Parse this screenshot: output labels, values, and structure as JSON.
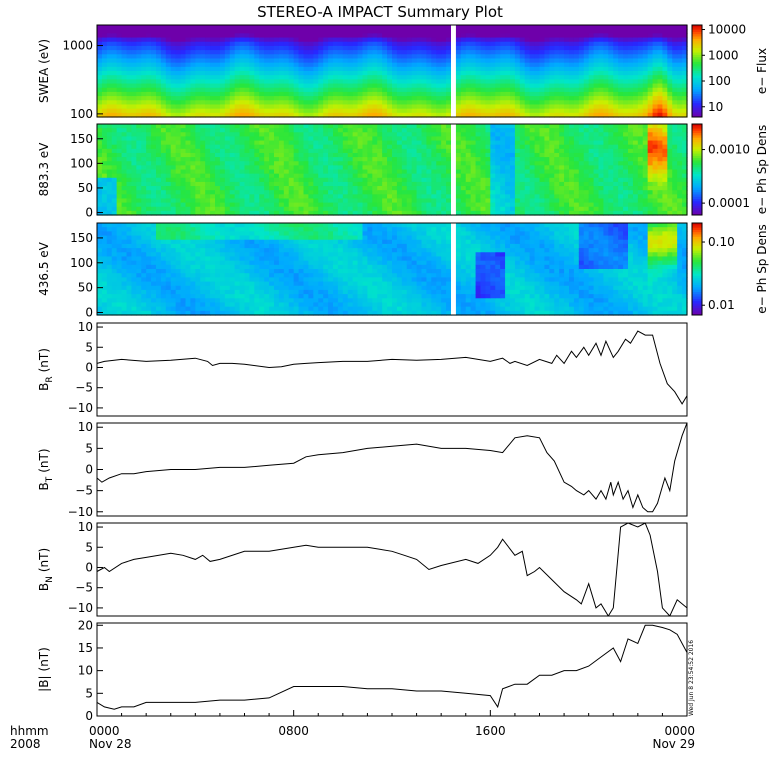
{
  "chart_data": {
    "title": "STEREO-A IMPACT Summary Plot",
    "type": "multi-panel time series",
    "time_ticks": [
      "0000",
      "0800",
      "1600",
      "0000"
    ],
    "time_ticks_hours": [
      0,
      8,
      16,
      24
    ],
    "time_date_labels": [
      "Nov 28",
      "Nov 29"
    ],
    "time_unit_label": "hhmm",
    "year_label": "2008",
    "x_range_hours": [
      0,
      24
    ],
    "data_gap_hours": [
      14.4,
      14.6
    ],
    "timestamp": "Wed Jun  8 23:54:52 2016",
    "spectrograms": [
      {
        "name": "swea",
        "ylabel": "SWEA (eV)",
        "y_scale": "log",
        "y_ticks": [
          100,
          1000
        ],
        "y_tick_labels": [
          "100",
          "1000"
        ],
        "y_range": [
          90,
          2000
        ],
        "colorbar_label": "e− Flux",
        "colorbar_scale": "log",
        "colorbar_ticks": [
          10,
          100,
          1000,
          10000
        ],
        "colorbar_tick_labels": [
          "10",
          "100",
          "1000",
          "10000"
        ],
        "colorbar_range": [
          4,
          15000
        ]
      },
      {
        "name": "pad883",
        "ylabel": "883.3 eV",
        "y_scale": "linear",
        "y_ticks": [
          0,
          50,
          100,
          150
        ],
        "y_tick_labels": [
          "0",
          "50",
          "100",
          "150"
        ],
        "y_range": [
          -5,
          180
        ],
        "colorbar_label": "e− Ph Sp Dens",
        "colorbar_scale": "log",
        "colorbar_ticks": [
          0.0001,
          0.001
        ],
        "colorbar_tick_labels": [
          "0.0001",
          "0.0010"
        ],
        "colorbar_range": [
          6e-05,
          0.003
        ]
      },
      {
        "name": "pad436",
        "ylabel": "436.5 eV",
        "y_scale": "linear",
        "y_ticks": [
          0,
          50,
          100,
          150
        ],
        "y_tick_labels": [
          "0",
          "50",
          "100",
          "150"
        ],
        "y_range": [
          -5,
          180
        ],
        "colorbar_label": "e− Ph Sp Dens",
        "colorbar_scale": "log",
        "colorbar_ticks": [
          0.01,
          0.1
        ],
        "colorbar_tick_labels": [
          "0.01",
          "0.10"
        ],
        "colorbar_range": [
          0.007,
          0.2
        ]
      }
    ],
    "line_panels": [
      {
        "name": "br",
        "ylabel_main": "B",
        "ylabel_sub": "R",
        "ylabel_unit": "(nT)",
        "y_ticks": [
          -10,
          -5,
          0,
          5,
          10
        ],
        "y_tick_labels": [
          "−10",
          "−5",
          "0",
          "5",
          "10"
        ],
        "y_range": [
          -12,
          11
        ],
        "x": [
          0,
          0.3,
          0.7,
          1,
          2,
          3,
          4,
          4.5,
          4.7,
          5,
          5.5,
          6,
          7,
          7.5,
          8,
          8.5,
          9,
          10,
          11,
          12,
          13,
          14,
          15,
          16,
          16.5,
          16.8,
          17,
          17.5,
          18,
          18.5,
          18.7,
          19,
          19.3,
          19.5,
          19.8,
          20,
          20.3,
          20.5,
          20.7,
          21,
          21.2,
          21.5,
          21.7,
          22,
          22.3,
          22.6,
          22.9,
          23.2,
          23.5,
          23.8,
          24
        ],
        "y": [
          1,
          1.5,
          1.8,
          2,
          1.5,
          1.8,
          2.3,
          1.5,
          0.5,
          1,
          1,
          0.8,
          0,
          0.2,
          0.8,
          1,
          1.2,
          1.5,
          1.5,
          2,
          1.8,
          2,
          2.5,
          1.5,
          2.3,
          1,
          1.5,
          0.5,
          2,
          1,
          3,
          1,
          4,
          2.5,
          5,
          3,
          6,
          3,
          6.5,
          2.5,
          4,
          7,
          6,
          9,
          8,
          8,
          1,
          -4,
          -6,
          -9,
          -7
        ]
      },
      {
        "name": "bt",
        "ylabel_main": "B",
        "ylabel_sub": "T",
        "ylabel_unit": "(nT)",
        "y_ticks": [
          -10,
          -5,
          0,
          5,
          10
        ],
        "y_tick_labels": [
          "−10",
          "−5",
          "0",
          "5",
          "10"
        ],
        "y_range": [
          -11,
          11
        ],
        "x": [
          0,
          0.2,
          0.5,
          1,
          1.5,
          2,
          3,
          4,
          5,
          6,
          7,
          8,
          8.5,
          9,
          10,
          11,
          12,
          13,
          14,
          15,
          16,
          16.5,
          17,
          17.5,
          18,
          18.3,
          18.6,
          19,
          19.3,
          19.5,
          19.8,
          20,
          20.3,
          20.5,
          20.7,
          20.9,
          21,
          21.2,
          21.4,
          21.6,
          21.8,
          22,
          22.2,
          22.4,
          22.6,
          22.8,
          23,
          23.1,
          23.3,
          23.5,
          23.8,
          24
        ],
        "y": [
          -2,
          -3,
          -2,
          -1,
          -1,
          -0.5,
          0,
          0,
          0.5,
          0.5,
          1,
          1.5,
          3,
          3.5,
          4,
          5,
          5.5,
          6,
          5,
          5,
          4.5,
          4,
          7.5,
          8,
          7.5,
          4,
          2,
          -3,
          -4,
          -5,
          -6,
          -5,
          -7,
          -5,
          -7,
          -3,
          -6,
          -3,
          -7,
          -5,
          -9,
          -6,
          -9,
          -10,
          -10,
          -8,
          -4,
          -2,
          -5,
          2,
          8,
          11
        ]
      },
      {
        "name": "bn",
        "ylabel_main": "B",
        "ylabel_sub": "N",
        "ylabel_unit": "(nT)",
        "y_ticks": [
          -10,
          -5,
          0,
          5,
          10
        ],
        "y_tick_labels": [
          "−10",
          "−5",
          "0",
          "5",
          "10"
        ],
        "y_range": [
          -12,
          11
        ],
        "x": [
          0,
          0.3,
          0.5,
          1,
          1.5,
          2,
          3,
          3.5,
          4,
          4.3,
          4.6,
          5,
          6,
          7,
          8,
          8.5,
          9,
          10,
          11,
          12,
          12.5,
          13,
          13.5,
          14,
          15,
          15.5,
          16,
          16.3,
          16.5,
          17,
          17.3,
          17.5,
          17.8,
          18,
          18.5,
          19,
          19.5,
          19.7,
          20,
          20.3,
          20.5,
          20.8,
          21,
          21.3,
          21.6,
          22,
          22.3,
          22.5,
          22.8,
          23,
          23.3,
          23.6,
          24
        ],
        "y": [
          -1,
          0,
          -1,
          1,
          2,
          2.5,
          3.5,
          3,
          2,
          3,
          1.5,
          2,
          4,
          4,
          5,
          5.5,
          5,
          5,
          5,
          4,
          3,
          2,
          -0.5,
          0.5,
          2,
          1,
          3,
          5,
          7,
          3,
          4,
          -2,
          -1,
          0,
          -3,
          -6,
          -8,
          -9,
          -4,
          -10,
          -9,
          -12,
          -10,
          10,
          11,
          10,
          11,
          8,
          -1,
          -10,
          -12,
          -8,
          -10
        ]
      },
      {
        "name": "bmag",
        "ylabel_main": "|B|",
        "ylabel_sub": "",
        "ylabel_unit": "(nT)",
        "y_ticks": [
          0,
          5,
          10,
          15,
          20
        ],
        "y_tick_labels": [
          "0",
          "5",
          "10",
          "15",
          "20"
        ],
        "y_range": [
          0,
          20.5
        ],
        "x": [
          0,
          0.3,
          0.7,
          1,
          1.5,
          2,
          3,
          4,
          5,
          6,
          7,
          8,
          9,
          10,
          11,
          12,
          13,
          14,
          15,
          16,
          16.3,
          16.5,
          17,
          17.5,
          18,
          18.5,
          19,
          19.5,
          20,
          20.5,
          21,
          21.3,
          21.6,
          22,
          22.3,
          22.6,
          23,
          23.3,
          23.6,
          24
        ],
        "y": [
          3,
          2,
          1.5,
          2,
          2,
          3,
          3,
          3,
          3.5,
          3.5,
          4,
          6.5,
          6.5,
          6.5,
          6,
          6,
          5.5,
          5.5,
          5,
          4.5,
          2,
          6,
          7,
          7,
          9,
          9,
          10,
          10,
          11,
          13,
          15,
          12,
          17,
          16,
          20,
          20,
          19.5,
          19,
          18,
          14
        ]
      }
    ]
  }
}
